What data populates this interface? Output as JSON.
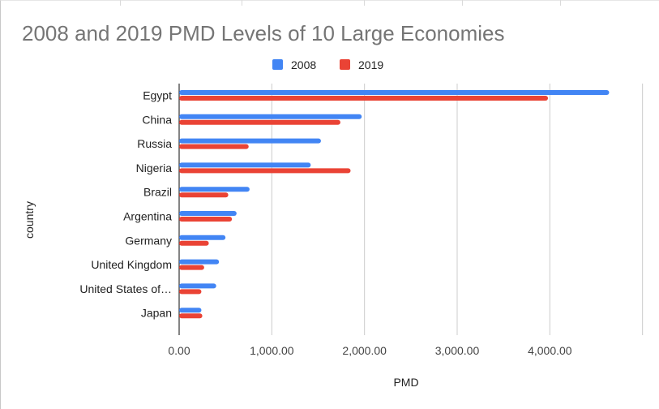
{
  "chart_data": {
    "type": "bar",
    "orientation": "horizontal",
    "title": "2008 and 2019 PMD Levels of 10 Large Economies",
    "xlabel": "PMD",
    "ylabel": "country",
    "categories": [
      "Egypt",
      "China",
      "Russia",
      "Nigeria",
      "Brazil",
      "Argentina",
      "Germany",
      "United Kingdom",
      "United States of…",
      "Japan"
    ],
    "series": [
      {
        "name": "2008",
        "color": "#4285f4",
        "values": [
          4640,
          1970,
          1530,
          1420,
          760,
          620,
          500,
          430,
          400,
          240
        ]
      },
      {
        "name": "2019",
        "color": "#ea4335",
        "values": [
          3980,
          1740,
          750,
          1850,
          530,
          570,
          320,
          270,
          240,
          250
        ]
      }
    ],
    "xlim": [
      0,
      5000
    ],
    "xticks": [
      0,
      1000,
      2000,
      3000,
      4000
    ],
    "xtick_labels": [
      "0.00",
      "1,000.00",
      "2,000.00",
      "3,000.00",
      "4,000.00"
    ],
    "grid": true,
    "legend_position": "top"
  }
}
